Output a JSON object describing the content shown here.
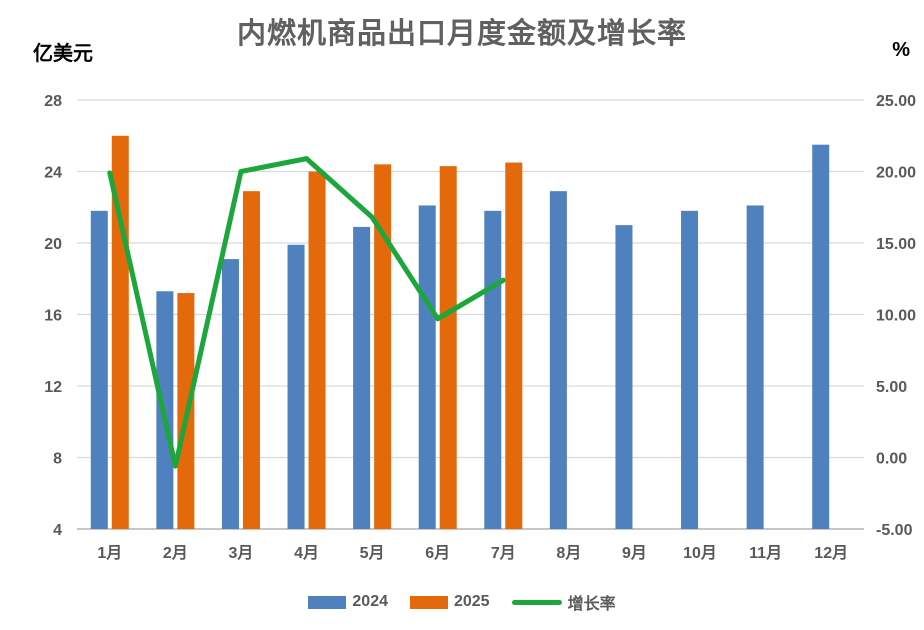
{
  "chart_data": {
    "type": "bar",
    "subtype": "combo-bar-line-dual-axis",
    "title": "内燃机商品出口月度金额及增长率",
    "grid": "horizontal-only",
    "legend_position": "bottom",
    "categories": [
      "1月",
      "2月",
      "3月",
      "4月",
      "5月",
      "6月",
      "7月",
      "8月",
      "9月",
      "10月",
      "11月",
      "12月"
    ],
    "left_axis": {
      "unit": "亿美元",
      "min": 4,
      "max": 28,
      "step": 4,
      "ticks": [
        "28",
        "24",
        "20",
        "16",
        "12",
        "8",
        "4"
      ]
    },
    "right_axis": {
      "unit": "%",
      "min": -5,
      "max": 25,
      "step": 5,
      "ticks": [
        "25.00",
        "20.00",
        "15.00",
        "10.00",
        "5.00",
        "0.00",
        "-5.00"
      ]
    },
    "series": [
      {
        "name": "2024",
        "kind": "bar",
        "axis": "left",
        "color": "#4E81BD",
        "values": [
          21.8,
          17.3,
          19.1,
          19.9,
          20.9,
          22.1,
          21.8,
          22.9,
          21.0,
          21.8,
          22.1,
          25.5
        ]
      },
      {
        "name": "2025",
        "kind": "bar",
        "axis": "left",
        "color": "#E3690B",
        "values": [
          26.0,
          17.2,
          22.9,
          24.0,
          24.4,
          24.3,
          24.5
        ]
      },
      {
        "name": "增长率",
        "kind": "line",
        "axis": "right",
        "color": "#1CA63C",
        "values": [
          19.9,
          -0.6,
          20.0,
          20.9,
          16.8,
          9.7,
          12.4
        ]
      }
    ]
  },
  "colors": {
    "title_text": "#606060",
    "axis_text": "#595959",
    "gridline": "#D9D9D9",
    "axis_line": "#C6C6C6",
    "background": "#FFFFFF"
  }
}
